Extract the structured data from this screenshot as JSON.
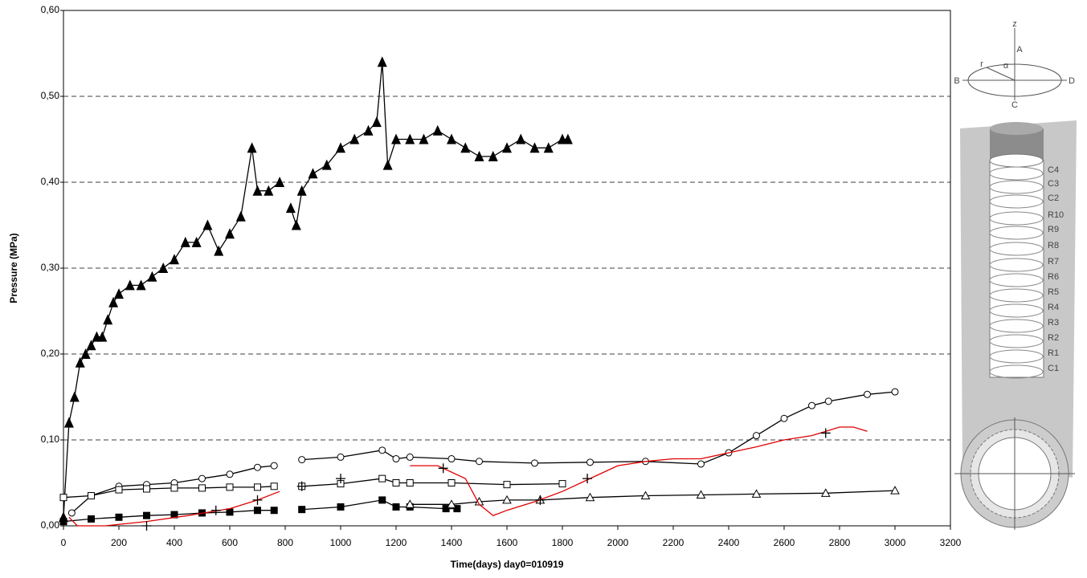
{
  "chart_data": {
    "type": "line",
    "xlabel": "Time(days)  day0=010919",
    "ylabel": "Pressure (MPa)",
    "xlim": [
      0,
      3200
    ],
    "xticks": [
      0,
      200,
      400,
      600,
      800,
      1000,
      1200,
      1400,
      1600,
      1800,
      2000,
      2200,
      2400,
      2600,
      2800,
      3000,
      3200
    ],
    "ylim": [
      0,
      0.6
    ],
    "yticks": [
      {
        "value": 0,
        "label": "0,00"
      },
      {
        "value": 0.1,
        "label": "0,10"
      },
      {
        "value": 0.2,
        "label": "0,20"
      },
      {
        "value": 0.3,
        "label": "0,30"
      },
      {
        "value": 0.4,
        "label": "0,40"
      },
      {
        "value": 0.5,
        "label": "0,50"
      },
      {
        "value": 0.6,
        "label": "0,60"
      }
    ],
    "grid": true,
    "series": [
      {
        "color": "#000000",
        "marker": "triangle-filled",
        "line": true,
        "x": [
          0,
          20,
          40,
          60,
          80,
          100,
          120,
          140,
          160,
          180,
          200,
          240,
          280,
          320,
          360,
          400,
          440,
          480,
          520,
          560,
          600,
          640,
          680,
          700,
          740,
          780,
          800,
          820,
          840,
          860,
          900,
          950,
          1000,
          1050,
          1100,
          1130,
          1150,
          1170,
          1200,
          1250,
          1300,
          1350,
          1400,
          1450,
          1500,
          1550,
          1600,
          1650,
          1700,
          1750,
          1800,
          1820
        ],
        "values": [
          0.01,
          0.12,
          0.15,
          0.19,
          0.2,
          0.21,
          0.22,
          0.22,
          0.24,
          0.26,
          0.27,
          0.28,
          0.28,
          0.29,
          0.3,
          0.31,
          0.33,
          0.33,
          0.35,
          0.32,
          0.34,
          0.36,
          0.44,
          0.39,
          0.39,
          0.4,
          null,
          0.37,
          0.35,
          0.39,
          0.41,
          0.42,
          0.44,
          0.45,
          0.46,
          0.47,
          0.54,
          0.42,
          0.45,
          0.45,
          0.45,
          0.46,
          0.45,
          0.44,
          0.43,
          0.43,
          0.44,
          0.45,
          0.44,
          0.44,
          0.45,
          0.45
        ]
      },
      {
        "color": "#000000",
        "marker": "circle",
        "line": true,
        "x": [
          30,
          100,
          200,
          300,
          400,
          500,
          600,
          700,
          760,
          800,
          860,
          1000,
          1150,
          1200,
          1250,
          1400,
          1500,
          1700,
          1900,
          2100,
          2300,
          2400,
          2500,
          2600,
          2700,
          2760,
          2900,
          3000
        ],
        "values": [
          0.015,
          0.035,
          0.046,
          0.048,
          0.05,
          0.055,
          0.06,
          0.068,
          0.07,
          null,
          0.077,
          0.08,
          0.088,
          0.078,
          0.08,
          0.078,
          0.075,
          0.073,
          0.074,
          0.075,
          0.072,
          0.085,
          0.105,
          0.125,
          0.14,
          0.145,
          0.153,
          0.156
        ]
      },
      {
        "color": "#000000",
        "marker": "square",
        "line": true,
        "x": [
          0,
          100,
          200,
          300,
          400,
          500,
          600,
          700,
          760,
          800,
          860,
          1000,
          1150,
          1200,
          1250,
          1400,
          1600,
          1800
        ],
        "values": [
          0.033,
          0.035,
          0.042,
          0.043,
          0.044,
          0.044,
          0.045,
          0.045,
          0.046,
          null,
          0.046,
          0.049,
          0.055,
          0.05,
          0.05,
          0.05,
          0.048,
          0.049
        ]
      },
      {
        "color": "#000000",
        "marker": "square-filled",
        "line": true,
        "x": [
          0,
          100,
          200,
          300,
          400,
          500,
          600,
          700,
          760,
          800,
          860,
          1000,
          1150,
          1200,
          1250,
          1380,
          1420
        ],
        "values": [
          0.005,
          0.008,
          0.01,
          0.012,
          0.013,
          0.015,
          0.016,
          0.018,
          0.018,
          null,
          0.019,
          0.022,
          0.03,
          0.022,
          0.022,
          0.02,
          0.02
        ]
      },
      {
        "color": "#000000",
        "marker": "triangle",
        "line": true,
        "x": [
          1250,
          1400,
          1500,
          1600,
          1720,
          1900,
          2100,
          2300,
          2500,
          2750,
          3000
        ],
        "values": [
          0.025,
          0.025,
          0.028,
          0.03,
          0.03,
          0.033,
          0.035,
          0.036,
          0.037,
          0.038,
          0.041
        ]
      },
      {
        "color": "#e00000",
        "marker": "none",
        "line": true,
        "x": [
          20,
          50,
          150,
          300,
          450,
          600,
          700,
          780,
          800,
          1250,
          1350,
          1450,
          1500,
          1550,
          1600,
          1700,
          1800,
          1900,
          2000,
          2100,
          2200,
          2300,
          2400,
          2500,
          2600,
          2700,
          2800,
          2850,
          2900
        ],
        "values": [
          0.01,
          0.0,
          0.0,
          0.005,
          0.012,
          0.02,
          0.03,
          0.04,
          null,
          0.07,
          0.07,
          0.055,
          0.025,
          0.012,
          0.018,
          0.028,
          0.04,
          0.055,
          0.07,
          0.075,
          0.078,
          0.078,
          0.085,
          0.092,
          0.1,
          0.105,
          0.115,
          0.115,
          0.11
        ]
      },
      {
        "color": "#000000",
        "marker": "cross",
        "line": false,
        "x": [
          300,
          550,
          700,
          860,
          1000,
          1370,
          1720,
          1890,
          2750
        ],
        "values": [
          0.0,
          0.018,
          0.03,
          0.046,
          0.055,
          0.067,
          0.03,
          0.055,
          0.108
        ]
      }
    ]
  },
  "schematic": {
    "axes": [
      "z",
      "r",
      "α",
      "A",
      "B",
      "C",
      "D"
    ],
    "rings": [
      "C4",
      "C3",
      "C2",
      "R10",
      "R9",
      "R8",
      "R7",
      "R6",
      "R5",
      "R4",
      "R3",
      "R2",
      "R1",
      "C1"
    ]
  }
}
